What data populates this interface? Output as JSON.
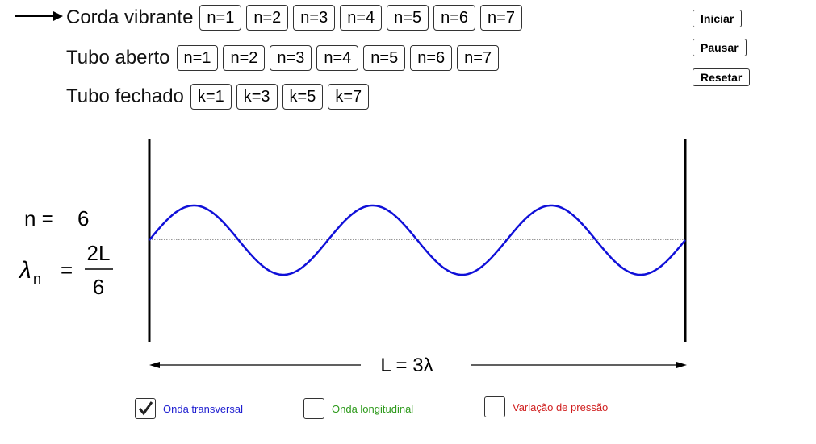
{
  "modes": [
    {
      "label": "Corda vibrante",
      "selected": true,
      "buttons": [
        "n=1",
        "n=2",
        "n=3",
        "n=4",
        "n=5",
        "n=6",
        "n=7"
      ]
    },
    {
      "label": "Tubo aberto",
      "selected": false,
      "buttons": [
        "n=1",
        "n=2",
        "n=3",
        "n=4",
        "n=5",
        "n=6",
        "n=7"
      ]
    },
    {
      "label": "Tubo fechado",
      "selected": false,
      "buttons": [
        "k=1",
        "k=3",
        "k=5",
        "k=7"
      ]
    }
  ],
  "controls": [
    "Iniciar",
    "Pausar",
    "Resetar"
  ],
  "formula": {
    "n_label": "n =",
    "n_value": 6,
    "lambda": "λ",
    "subscript": "n",
    "equals": "=",
    "numerator": "2L",
    "denominator": 6
  },
  "length_label": "L = 3λ",
  "checkboxes": [
    {
      "label": "Onda transversal",
      "checked": true,
      "color": "#1f1fd0"
    },
    {
      "label": "Onda longitudinal",
      "checked": false,
      "color": "#2e9a1c"
    },
    {
      "label": "Variação de pressão",
      "checked": false,
      "color": "#d01f1f"
    }
  ]
}
